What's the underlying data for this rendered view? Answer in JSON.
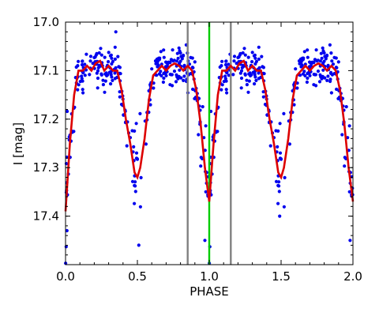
{
  "chart_data": {
    "type": "scatter",
    "xlabel": "PHASE",
    "ylabel": "I [mag]",
    "xlim": [
      0.0,
      2.0
    ],
    "ylim": [
      17.0,
      17.5
    ],
    "y_inverted": true,
    "grid": false,
    "x_ticks": [
      0.0,
      0.5,
      1.0,
      1.5,
      2.0
    ],
    "x_tick_labels": [
      "0.0",
      "0.5",
      "1.0",
      "1.5",
      "2.0"
    ],
    "y_ticks": [
      17.0,
      17.1,
      17.2,
      17.3,
      17.4
    ],
    "y_tick_labels": [
      "17.0",
      "17.1",
      "17.2",
      "17.3",
      "17.4"
    ],
    "colors": {
      "points": "#0000ee",
      "model": "#dd0000",
      "vlines": "#808080",
      "center_line": "#00cc00"
    },
    "vertical_lines": [
      {
        "x": 0.85,
        "color": "#808080"
      },
      {
        "x": 1.0,
        "color": "#00cc00"
      },
      {
        "x": 1.15,
        "color": "#808080"
      }
    ],
    "model_curve": {
      "phase": [
        0.0,
        0.03,
        0.06,
        0.09,
        0.12,
        0.15,
        0.18,
        0.21,
        0.24,
        0.27,
        0.3,
        0.33,
        0.36,
        0.39,
        0.42,
        0.45,
        0.48,
        0.5,
        0.52,
        0.55,
        0.58,
        0.61,
        0.64,
        0.67,
        0.7,
        0.73,
        0.76,
        0.79,
        0.82,
        0.85,
        0.88,
        0.91,
        0.94,
        0.97,
        1.0
      ],
      "mag": [
        17.39,
        17.25,
        17.15,
        17.1,
        17.1,
        17.09,
        17.1,
        17.085,
        17.08,
        17.1,
        17.09,
        17.1,
        17.1,
        17.14,
        17.2,
        17.25,
        17.31,
        17.32,
        17.3,
        17.24,
        17.16,
        17.11,
        17.1,
        17.09,
        17.1,
        17.09,
        17.085,
        17.09,
        17.1,
        17.09,
        17.1,
        17.14,
        17.21,
        17.3,
        17.37
      ]
    },
    "scatter": {
      "n_points_per_cycle": 300,
      "scatter_sigma": 0.02,
      "outlier_examples": [
        [
          0.35,
          17.02
        ],
        [
          0.01,
          17.43
        ],
        [
          0.51,
          17.46
        ],
        [
          0.97,
          17.45
        ],
        [
          1.49,
          17.4
        ],
        [
          1.98,
          17.45
        ]
      ]
    }
  }
}
